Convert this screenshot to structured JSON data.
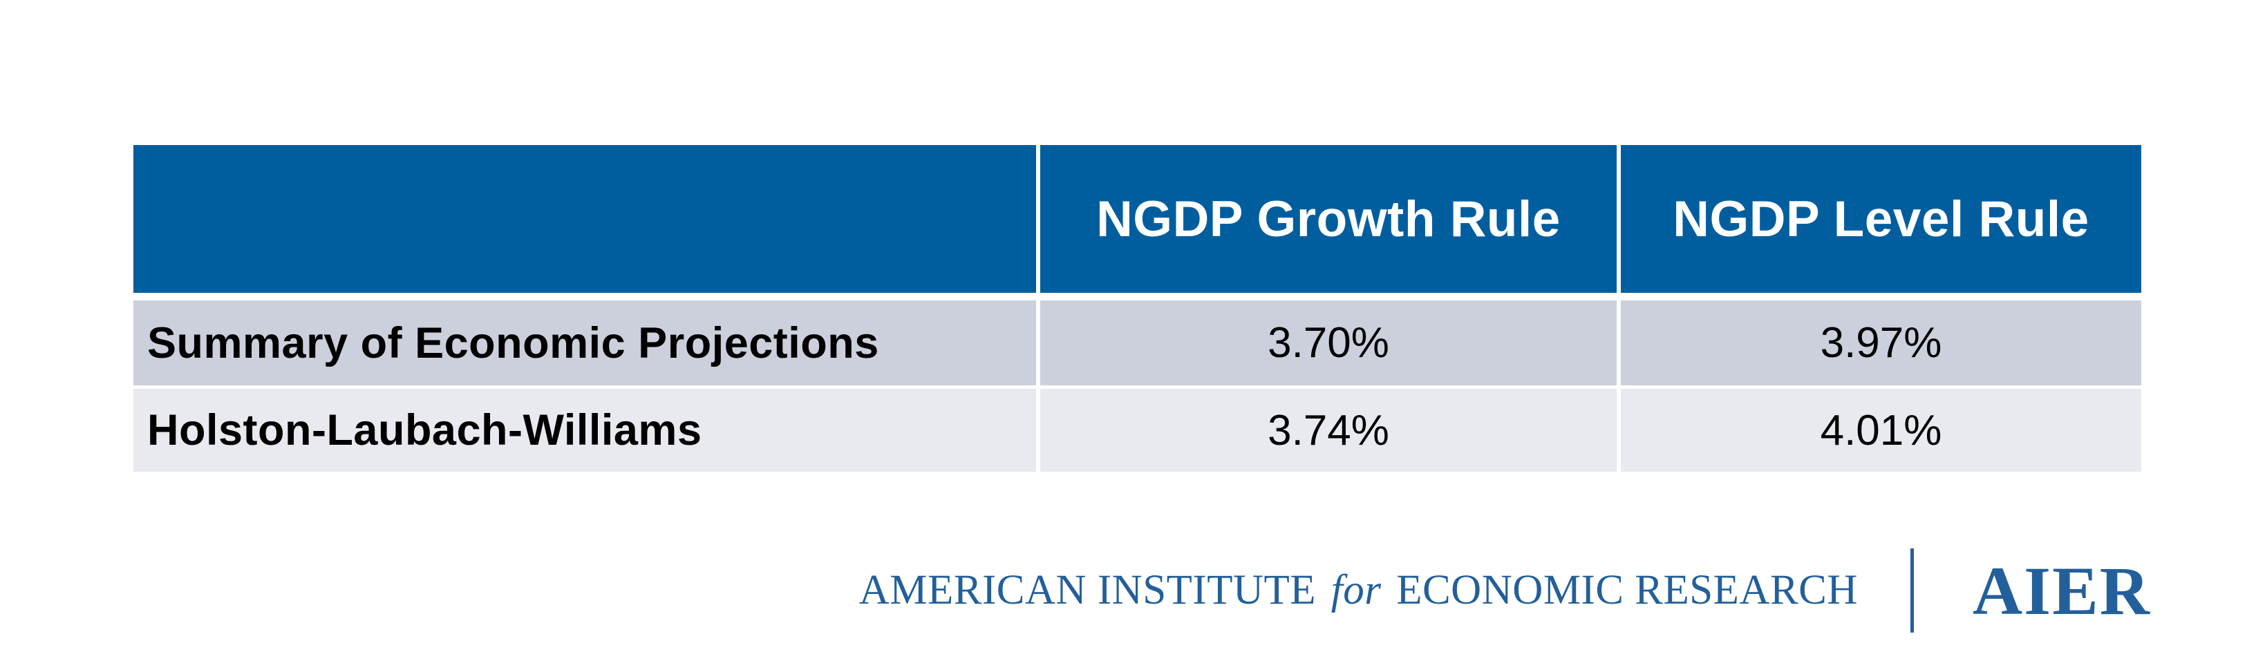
{
  "table": {
    "columns": [
      "",
      "NGDP Growth Rule",
      "NGDP Level Rule"
    ],
    "rows": [
      {
        "label": "Summary of Economic Projections",
        "values": [
          "3.70%",
          "3.97%"
        ]
      },
      {
        "label": "Holston-Laubach-Williams",
        "values": [
          "3.74%",
          "4.01%"
        ]
      }
    ]
  },
  "chart_data": {
    "type": "table",
    "columns": [
      "NGDP Growth Rule",
      "NGDP Level Rule"
    ],
    "rows": [
      {
        "label": "Summary of Economic Projections",
        "values_pct": [
          3.7,
          3.97
        ]
      },
      {
        "label": "Holston-Laubach-Williams",
        "values_pct": [
          3.74,
          4.01
        ]
      }
    ]
  },
  "footer": {
    "institute_part1": "AMERICAN INSTITUTE",
    "institute_for": "for",
    "institute_part2": "ECONOMIC RESEARCH",
    "acronym": "AIER"
  },
  "colors": {
    "header_bg": "#005E9E",
    "row_odd_bg": "#CBD0DC",
    "row_even_bg": "#E8EAF0",
    "logo_blue": "#235F9A",
    "header_text": "#FFFFFF",
    "body_text": "#000000"
  }
}
